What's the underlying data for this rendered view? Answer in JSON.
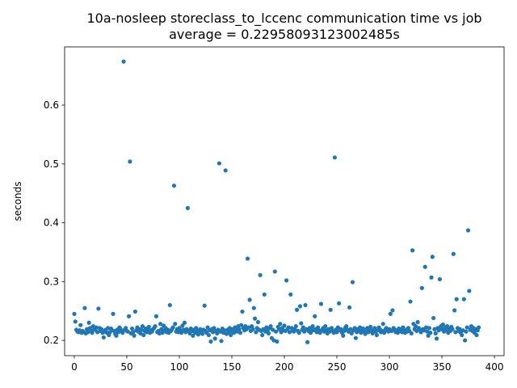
{
  "chart_data": {
    "type": "scatter",
    "title": "10a-nosleep storeclass_to_lccenc communication time vs job",
    "subtitle": "average = 0.22958093123002485s",
    "y_label": "seconds",
    "color": "#1f77b4",
    "xlim": [
      -9.2,
      409.2
    ],
    "ylim": [
      0.174,
      0.699
    ],
    "xticks": [
      0,
      50,
      100,
      150,
      200,
      250,
      300,
      350,
      400
    ],
    "yticks": [
      0.2,
      0.3,
      0.4,
      0.5,
      0.6
    ],
    "x": [
      0,
      1,
      2,
      3,
      4,
      5,
      6,
      7,
      8,
      9,
      10,
      11,
      12,
      13,
      14,
      15,
      16,
      17,
      18,
      19,
      20,
      21,
      22,
      23,
      24,
      25,
      26,
      27,
      28,
      29,
      30,
      31,
      32,
      33,
      34,
      35,
      36,
      37,
      38,
      39,
      40,
      41,
      42,
      43,
      44,
      45,
      46,
      47,
      48,
      49,
      50,
      51,
      52,
      53,
      54,
      55,
      56,
      57,
      58,
      59,
      60,
      61,
      62,
      63,
      64,
      65,
      66,
      67,
      68,
      69,
      70,
      71,
      72,
      73,
      74,
      75,
      76,
      77,
      78,
      79,
      80,
      81,
      82,
      83,
      84,
      85,
      86,
      87,
      88,
      89,
      90,
      91,
      92,
      93,
      94,
      95,
      96,
      97,
      98,
      99,
      100,
      101,
      102,
      103,
      104,
      105,
      106,
      107,
      108,
      109,
      110,
      111,
      112,
      113,
      114,
      115,
      116,
      117,
      118,
      119,
      120,
      121,
      122,
      123,
      124,
      125,
      126,
      127,
      128,
      129,
      130,
      131,
      132,
      133,
      134,
      135,
      136,
      137,
      138,
      139,
      140,
      141,
      142,
      143,
      144,
      145,
      146,
      147,
      148,
      149,
      150,
      151,
      152,
      153,
      154,
      155,
      156,
      157,
      158,
      159,
      160,
      161,
      162,
      163,
      164,
      165,
      166,
      167,
      168,
      169,
      170,
      171,
      172,
      173,
      174,
      175,
      176,
      177,
      178,
      179,
      180,
      181,
      182,
      183,
      184,
      185,
      186,
      187,
      188,
      189,
      190,
      191,
      192,
      193,
      194,
      195,
      196,
      197,
      198,
      199,
      200,
      201,
      202,
      203,
      204,
      205,
      206,
      207,
      208,
      209,
      210,
      211,
      212,
      213,
      214,
      215,
      216,
      217,
      218,
      219,
      220,
      221,
      222,
      223,
      224,
      225,
      226,
      227,
      228,
      229,
      230,
      231,
      232,
      233,
      234,
      235,
      236,
      237,
      238,
      239,
      240,
      241,
      242,
      243,
      244,
      245,
      246,
      247,
      248,
      249,
      250,
      251,
      252,
      253,
      254,
      255,
      256,
      257,
      258,
      259,
      260,
      261,
      262,
      263,
      264,
      265,
      266,
      267,
      268,
      269,
      270,
      271,
      272,
      273,
      274,
      275,
      276,
      277,
      278,
      279,
      280,
      281,
      282,
      283,
      284,
      285,
      286,
      287,
      288,
      289,
      290,
      291,
      292,
      293,
      294,
      295,
      296,
      297,
      298,
      299,
      300,
      301,
      302,
      303,
      304,
      305,
      306,
      307,
      308,
      309,
      310,
      311,
      312,
      313,
      314,
      315,
      316,
      317,
      318,
      319,
      320,
      321,
      322,
      323,
      324,
      325,
      326,
      327,
      328,
      329,
      330,
      331,
      332,
      333,
      334,
      335,
      336,
      337,
      338,
      339,
      340,
      341,
      342,
      343,
      344,
      345,
      346,
      347,
      348,
      349,
      350,
      351,
      352,
      353,
      354,
      355,
      356,
      357,
      358,
      359,
      360,
      361,
      362,
      363,
      364,
      365,
      366,
      367,
      368,
      369,
      370,
      371,
      372,
      373,
      374,
      375,
      376,
      377,
      378,
      379,
      380,
      381,
      382,
      383,
      384,
      385
    ],
    "values": [
      0.245,
      0.232,
      0.218,
      0.215,
      0.214,
      0.217,
      0.226,
      0.213,
      0.216,
      0.214,
      0.255,
      0.212,
      0.219,
      0.214,
      0.23,
      0.221,
      0.216,
      0.213,
      0.224,
      0.219,
      0.218,
      0.222,
      0.214,
      0.254,
      0.221,
      0.216,
      0.219,
      0.213,
      0.205,
      0.215,
      0.218,
      0.213,
      0.221,
      0.209,
      0.214,
      0.22,
      0.217,
      0.245,
      0.216,
      0.211,
      0.208,
      0.218,
      0.214,
      0.222,
      0.219,
      0.216,
      0.213,
      0.674,
      0.218,
      0.221,
      0.216,
      0.215,
      0.241,
      0.504,
      0.212,
      0.22,
      0.214,
      0.208,
      0.249,
      0.217,
      0.222,
      0.215,
      0.219,
      0.212,
      0.218,
      0.224,
      0.209,
      0.216,
      0.22,
      0.214,
      0.218,
      0.223,
      0.213,
      0.217,
      0.215,
      0.219,
      0.221,
      0.224,
      0.241,
      0.214,
      0.216,
      0.212,
      0.228,
      0.219,
      0.213,
      0.225,
      0.217,
      0.221,
      0.214,
      0.218,
      0.213,
      0.26,
      0.216,
      0.219,
      0.222,
      0.463,
      0.228,
      0.215,
      0.219,
      0.214,
      0.221,
      0.217,
      0.213,
      0.225,
      0.218,
      0.23,
      0.214,
      0.219,
      0.425,
      0.216,
      0.212,
      0.22,
      0.216,
      0.208,
      0.218,
      0.213,
      0.221,
      0.215,
      0.21,
      0.217,
      0.219,
      0.214,
      0.211,
      0.218,
      0.259,
      0.216,
      0.213,
      0.222,
      0.209,
      0.217,
      0.198,
      0.219,
      0.214,
      0.221,
      0.203,
      0.216,
      0.212,
      0.218,
      0.501,
      0.215,
      0.199,
      0.22,
      0.213,
      0.217,
      0.489,
      0.211,
      0.218,
      0.214,
      0.221,
      0.209,
      0.216,
      0.219,
      0.213,
      0.222,
      0.218,
      0.215,
      0.224,
      0.219,
      0.213,
      0.226,
      0.249,
      0.221,
      0.217,
      0.224,
      0.219,
      0.339,
      0.222,
      0.269,
      0.216,
      0.224,
      0.219,
      0.255,
      0.237,
      0.214,
      0.221,
      0.231,
      0.218,
      0.311,
      0.216,
      0.209,
      0.219,
      0.278,
      0.215,
      0.222,
      0.217,
      0.212,
      0.221,
      0.224,
      0.204,
      0.218,
      0.2,
      0.317,
      0.215,
      0.198,
      0.223,
      0.219,
      0.228,
      0.214,
      0.221,
      0.217,
      0.225,
      0.216,
      0.302,
      0.219,
      0.222,
      0.214,
      0.278,
      0.221,
      0.217,
      0.215,
      0.219,
      0.224,
      0.252,
      0.216,
      0.213,
      0.258,
      0.229,
      0.218,
      0.222,
      0.215,
      0.26,
      0.219,
      0.197,
      0.216,
      0.221,
      0.213,
      0.218,
      0.224,
      0.217,
      0.241,
      0.219,
      0.214,
      0.222,
      0.217,
      0.213,
      0.262,
      0.218,
      0.221,
      0.215,
      0.224,
      0.217,
      0.212,
      0.219,
      0.215,
      0.252,
      0.221,
      0.216,
      0.213,
      0.511,
      0.218,
      0.214,
      0.222,
      0.263,
      0.217,
      0.219,
      0.213,
      0.208,
      0.216,
      0.221,
      0.224,
      0.218,
      0.215,
      0.256,
      0.219,
      0.212,
      0.299,
      0.217,
      0.221,
      0.204,
      0.214,
      0.219,
      0.216,
      0.222,
      0.213,
      0.218,
      0.22,
      0.215,
      0.211,
      0.217,
      0.221,
      0.214,
      0.219,
      0.223,
      0.216,
      0.212,
      0.218,
      0.221,
      0.215,
      0.209,
      0.217,
      0.222,
      0.219,
      0.214,
      0.216,
      0.228,
      0.213,
      0.218,
      0.221,
      0.217,
      0.215,
      0.219,
      0.245,
      0.216,
      0.251,
      0.221,
      0.218,
      0.214,
      0.217,
      0.213,
      0.22,
      0.216,
      0.219,
      0.214,
      0.222,
      0.217,
      0.213,
      0.218,
      0.215,
      0.221,
      0.216,
      0.266,
      0.212,
      0.353,
      0.228,
      0.219,
      0.224,
      0.216,
      0.231,
      0.221,
      0.218,
      0.214,
      0.289,
      0.219,
      0.217,
      0.325,
      0.222,
      0.215,
      0.208,
      0.221,
      0.213,
      0.307,
      0.342,
      0.238,
      0.219,
      0.212,
      0.203,
      0.221,
      0.217,
      0.304,
      0.224,
      0.219,
      0.227,
      0.215,
      0.222,
      0.218,
      0.224,
      0.213,
      0.22,
      0.216,
      0.223,
      0.219,
      0.347,
      0.251,
      0.214,
      0.27,
      0.221,
      0.216,
      0.219,
      0.213,
      0.209,
      0.217,
      0.27,
      0.2,
      0.215,
      0.222,
      0.387,
      0.284,
      0.218,
      0.224,
      0.216,
      0.221,
      0.213,
      0.219,
      0.209,
      0.217,
      0.222
    ]
  }
}
